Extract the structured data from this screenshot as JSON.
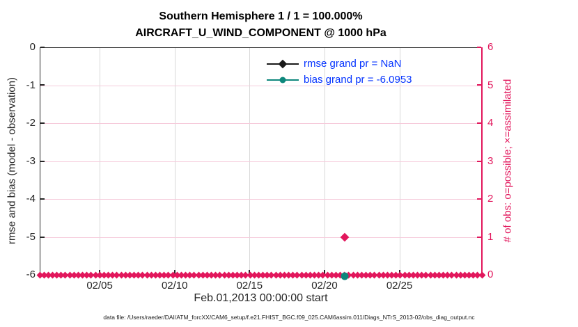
{
  "title": {
    "line1": "Southern Hemisphere 1 / 1 = 100.000%",
    "line2": "AIRCRAFT_U_WIND_COMPONENT @ 1000 hPa"
  },
  "legend": {
    "items": [
      {
        "label": "rmse grand pr = NaN",
        "marker": "diamond",
        "color": "#1a1a1a"
      },
      {
        "label": "bias grand pr = -6.0953",
        "marker": "circle",
        "color": "#0e877c"
      }
    ],
    "text_color": "#0433ff"
  },
  "axes": {
    "left": {
      "label": "rmse and bias (model - observation)",
      "ticks": [
        "0",
        "-1",
        "-2",
        "-3",
        "-4",
        "-5",
        "-6"
      ]
    },
    "right": {
      "label": "# of obs: o=possible; ×=assimilated",
      "ticks": [
        "6",
        "5",
        "4",
        "3",
        "2",
        "1",
        "0"
      ]
    },
    "x": {
      "label": "Feb.01,2013 00:00:00 start",
      "ticks": [
        {
          "label": "02/05",
          "day": 4
        },
        {
          "label": "02/10",
          "day": 9
        },
        {
          "label": "02/15",
          "day": 14
        },
        {
          "label": "02/20",
          "day": 19
        },
        {
          "label": "02/25",
          "day": 24
        }
      ],
      "axis_span_days": 29.5
    }
  },
  "caption": "data file: /Users/raeder/DAI/ATM_forcXX/CAM6_setup/f.e21.FHIST_BGC.f09_025.CAM6assim.011/Diags_NTrS_2013-02/obs_diag_output.nc",
  "colors": {
    "pink": "#e2175c",
    "pink_grid": "#f6cbdb",
    "gray_grid": "#d8d8d8",
    "teal": "#0e877c",
    "legend_blue": "#0433ff",
    "axis_dark": "#262626"
  },
  "chart_data": {
    "type": "line",
    "title": "Southern Hemisphere 1 / 1 = 100.000% | AIRCRAFT_U_WIND_COMPONENT @ 1000 hPa",
    "xlabel": "Feb.01,2013 00:00:00 start",
    "x_tick_labels": [
      "02/05",
      "02/10",
      "02/15",
      "02/20",
      "02/25"
    ],
    "x_range_days_from_feb01": [
      0,
      29.5
    ],
    "y_left": {
      "label": "rmse and bias (model - observation)",
      "range": [
        -6,
        0
      ]
    },
    "y_right": {
      "label": "# of obs: o=possible; ×=assimilated",
      "range": [
        0,
        6
      ]
    },
    "grid": true,
    "legend_position": "top-right-inside",
    "series": [
      {
        "name": "rmse",
        "axis": "left",
        "color": "#1a1a1a",
        "grand_value": "NaN",
        "points": []
      },
      {
        "name": "bias",
        "axis": "left",
        "color": "#0e877c",
        "grand_value": -6.0953,
        "points": [
          {
            "day": 20.35,
            "value": -6.0953,
            "clipped_at_axis_bottom": true
          }
        ]
      },
      {
        "name": "obs_possible",
        "axis": "right",
        "color": "#e2175c",
        "description": "count = 0 at every ~6h bin across the month except one bin",
        "nonzero_points": [
          {
            "day": 20.35,
            "value": 1
          }
        ],
        "zero_band": {
          "from_day": 0,
          "to_day": 29.5,
          "value": 0,
          "marker_count": 104
        }
      },
      {
        "name": "obs_assimilated",
        "axis": "right",
        "color": "#e2175c",
        "description": "count = 0 at every bin",
        "zero_band": {
          "from_day": 0,
          "to_day": 29.5,
          "value": 0
        }
      }
    ]
  }
}
